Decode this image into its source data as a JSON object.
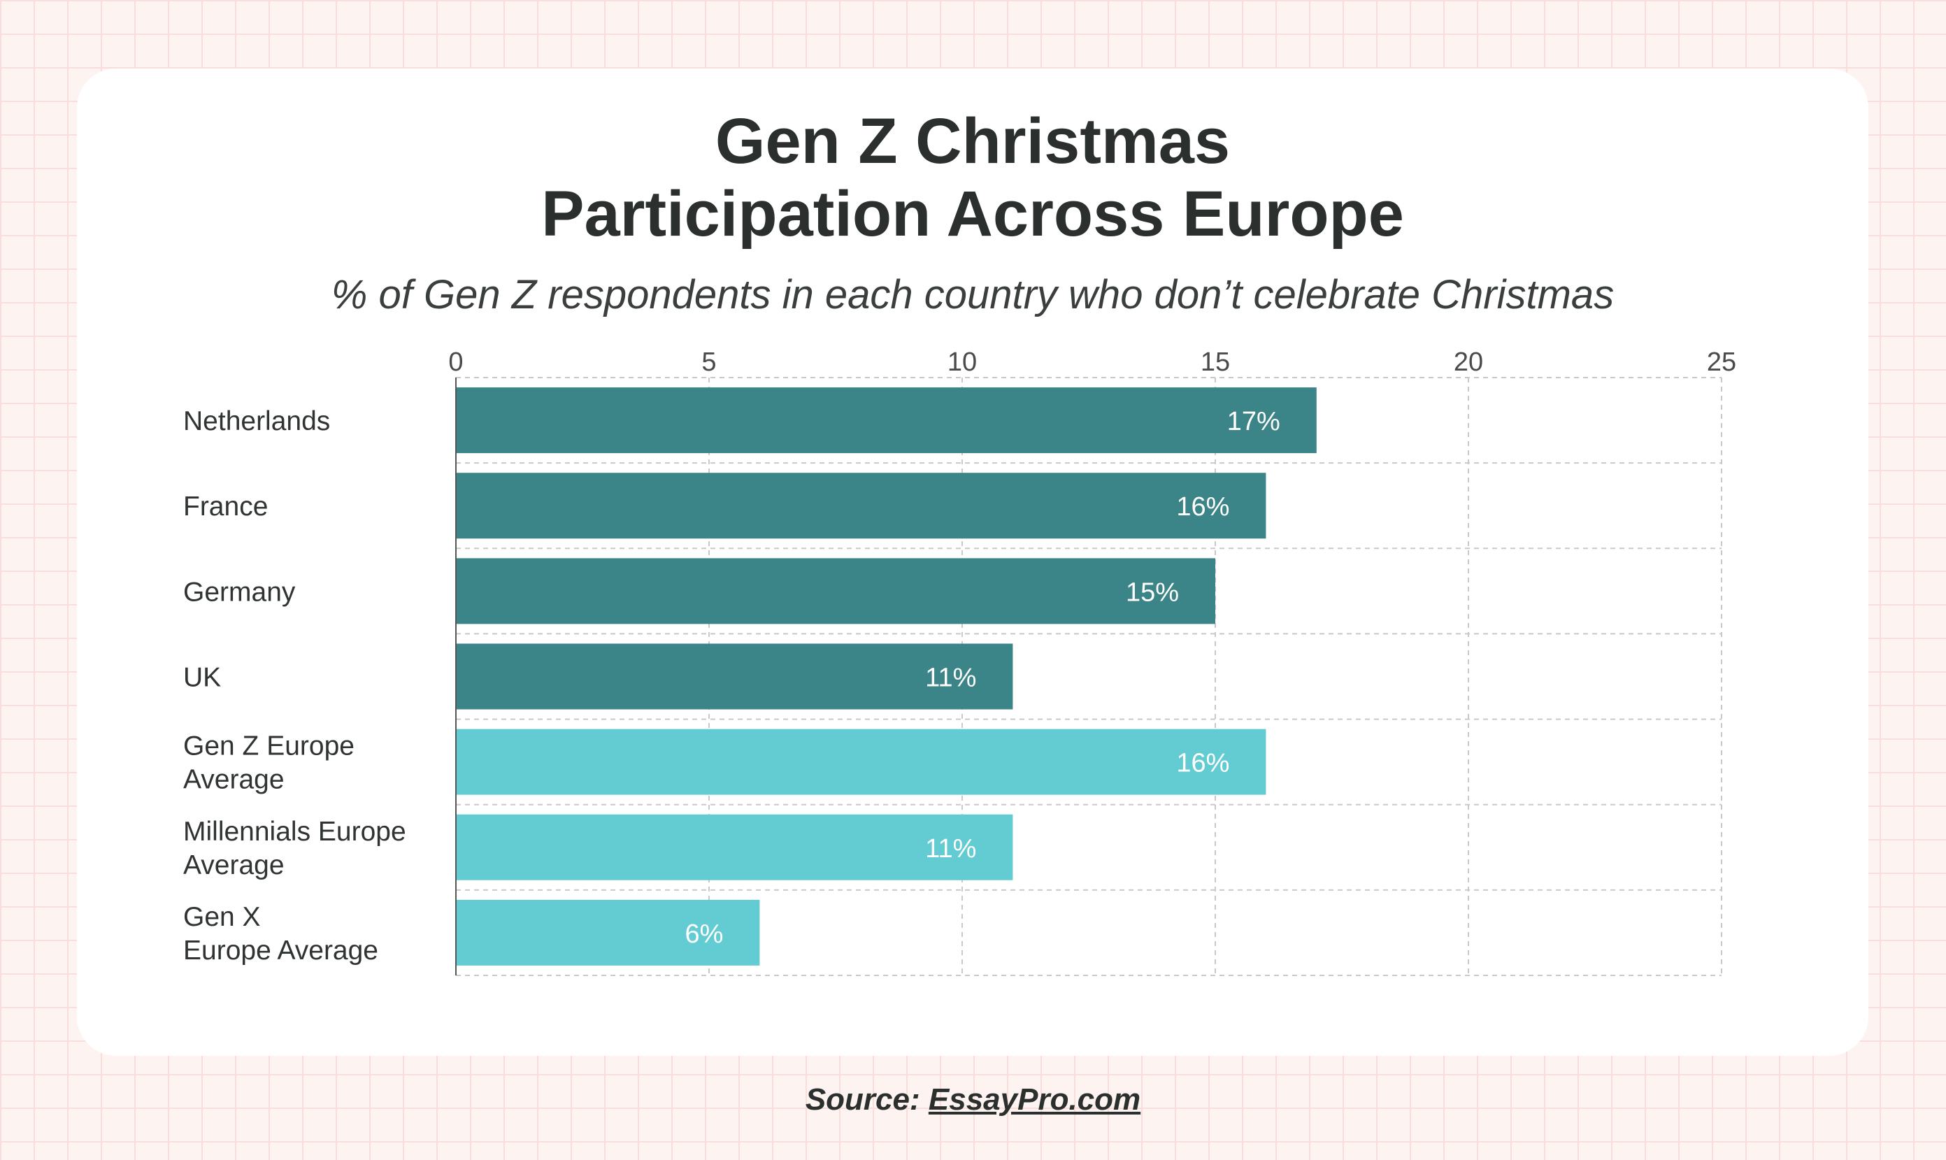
{
  "chart_data": {
    "type": "bar",
    "orientation": "horizontal",
    "title_lines": [
      "Gen Z Christmas",
      "Participation Across Europe"
    ],
    "subtitle": "% of Gen Z respondents in each country who don’t celebrate Christmas",
    "xlim": [
      0,
      25
    ],
    "x_ticks": [
      "0",
      "5",
      "10",
      "15",
      "20",
      "25"
    ],
    "grid": true,
    "categories": [
      [
        "Netherlands"
      ],
      [
        "France"
      ],
      [
        "Germany"
      ],
      [
        "UK"
      ],
      [
        "Gen Z Europe",
        "Average"
      ],
      [
        "Millennials Europe",
        "Average"
      ],
      [
        "Gen X",
        "Europe Average"
      ]
    ],
    "values": [
      17,
      16,
      15,
      11,
      16,
      11,
      6
    ],
    "value_labels": [
      "17%",
      "16%",
      "15%",
      "11%",
      "16%",
      "11%",
      "6%"
    ],
    "bar_colors": [
      "#3b8487",
      "#3b8487",
      "#3b8487",
      "#3b8487",
      "#62ccd2",
      "#62ccd2",
      "#62ccd2"
    ]
  },
  "source": {
    "prefix": "Source: ",
    "link_text": "EssayPro.com"
  }
}
